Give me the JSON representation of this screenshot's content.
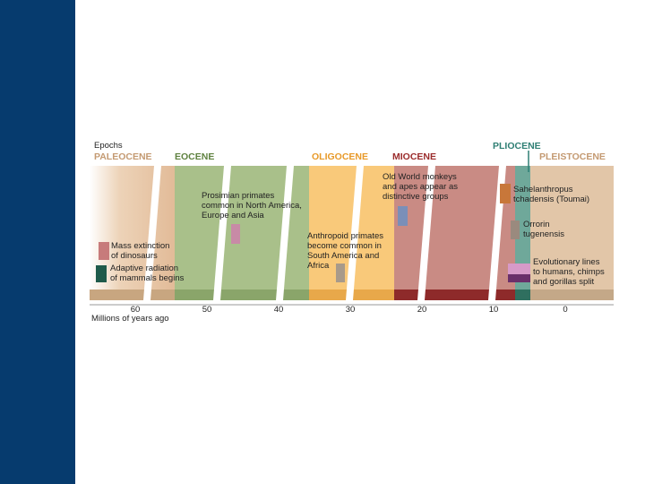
{
  "diagram": {
    "epochs_heading": "Epochs",
    "epochs": [
      "PALEOCENE",
      "EOCENE",
      "OLIGOCENE",
      "MIOCENE",
      "PLIOCENE",
      "PLEISTOCENE"
    ],
    "annotations": [
      [
        "Mass extinction",
        "of dinosaurs"
      ],
      [
        "Adaptive radiation",
        "of mammals begins"
      ],
      [
        "Prosimian primates",
        "common in North America,",
        "Europe and Asia"
      ],
      [
        "Anthropoid primates",
        "become common in",
        "South America and",
        "Africa"
      ],
      [
        "Old World monkeys",
        "and apes appear as",
        "distinctive groups"
      ],
      [
        "Sahelanthropus",
        "tchadensis (Toumai)"
      ],
      [
        "Orrorin",
        "tugenensis"
      ],
      [
        "Evolutionary lines",
        "to humans, chimps",
        "and gorillas split"
      ]
    ],
    "axis_ticks": [
      "60",
      "50",
      "40",
      "30",
      "20",
      "10",
      "0"
    ],
    "axis_label": "Millions of years ago"
  }
}
